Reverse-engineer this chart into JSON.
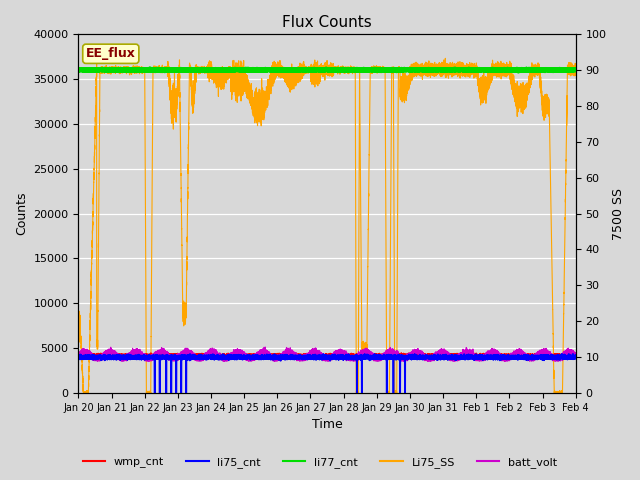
{
  "title": "Flux Counts",
  "xlabel": "Time",
  "ylabel_left": "Counts",
  "ylabel_right": "7500 SS",
  "annotation_text": "EE_flux",
  "annotation_bg": "#ffffcc",
  "annotation_border": "#aaaa00",
  "annotation_text_color": "#880000",
  "ylim_left": [
    0,
    40000
  ],
  "ylim_right": [
    0,
    100
  ],
  "left_yticks": [
    0,
    5000,
    10000,
    15000,
    20000,
    25000,
    30000,
    35000,
    40000
  ],
  "right_yticks": [
    0,
    10,
    20,
    30,
    40,
    50,
    60,
    70,
    80,
    90,
    100
  ],
  "xtick_labels": [
    "Jan 20",
    "Jan 21",
    "Jan 22",
    "Jan 23",
    "Jan 24",
    "Jan 25",
    "Jan 26",
    "Jan 27",
    "Jan 28",
    "Jan 29",
    "Jan 30",
    "Jan 31",
    "Feb 1",
    "Feb 2",
    "Feb 3",
    "Feb 4"
  ],
  "bg_color": "#d8d8d8",
  "plot_bg_color": "#d8d8d8",
  "grid_color": "#ffffff",
  "series": {
    "wmp_cnt": {
      "color": "#ff0000",
      "lw": 0.8
    },
    "li75_cnt": {
      "color": "#0000ff",
      "lw": 1.2
    },
    "li77_cnt": {
      "color": "#00dd00",
      "lw": 2.5
    },
    "Li75_SS": {
      "color": "#ffa500",
      "lw": 0.8
    },
    "batt_volt": {
      "color": "#cc00cc",
      "lw": 0.8
    }
  },
  "legend": {
    "entries": [
      "wmp_cnt",
      "li75_cnt",
      "li77_cnt",
      "Li75_SS",
      "batt_volt"
    ],
    "colors": [
      "#ff0000",
      "#0000ff",
      "#00dd00",
      "#ffa500",
      "#cc00cc"
    ]
  },
  "total_days": 15
}
